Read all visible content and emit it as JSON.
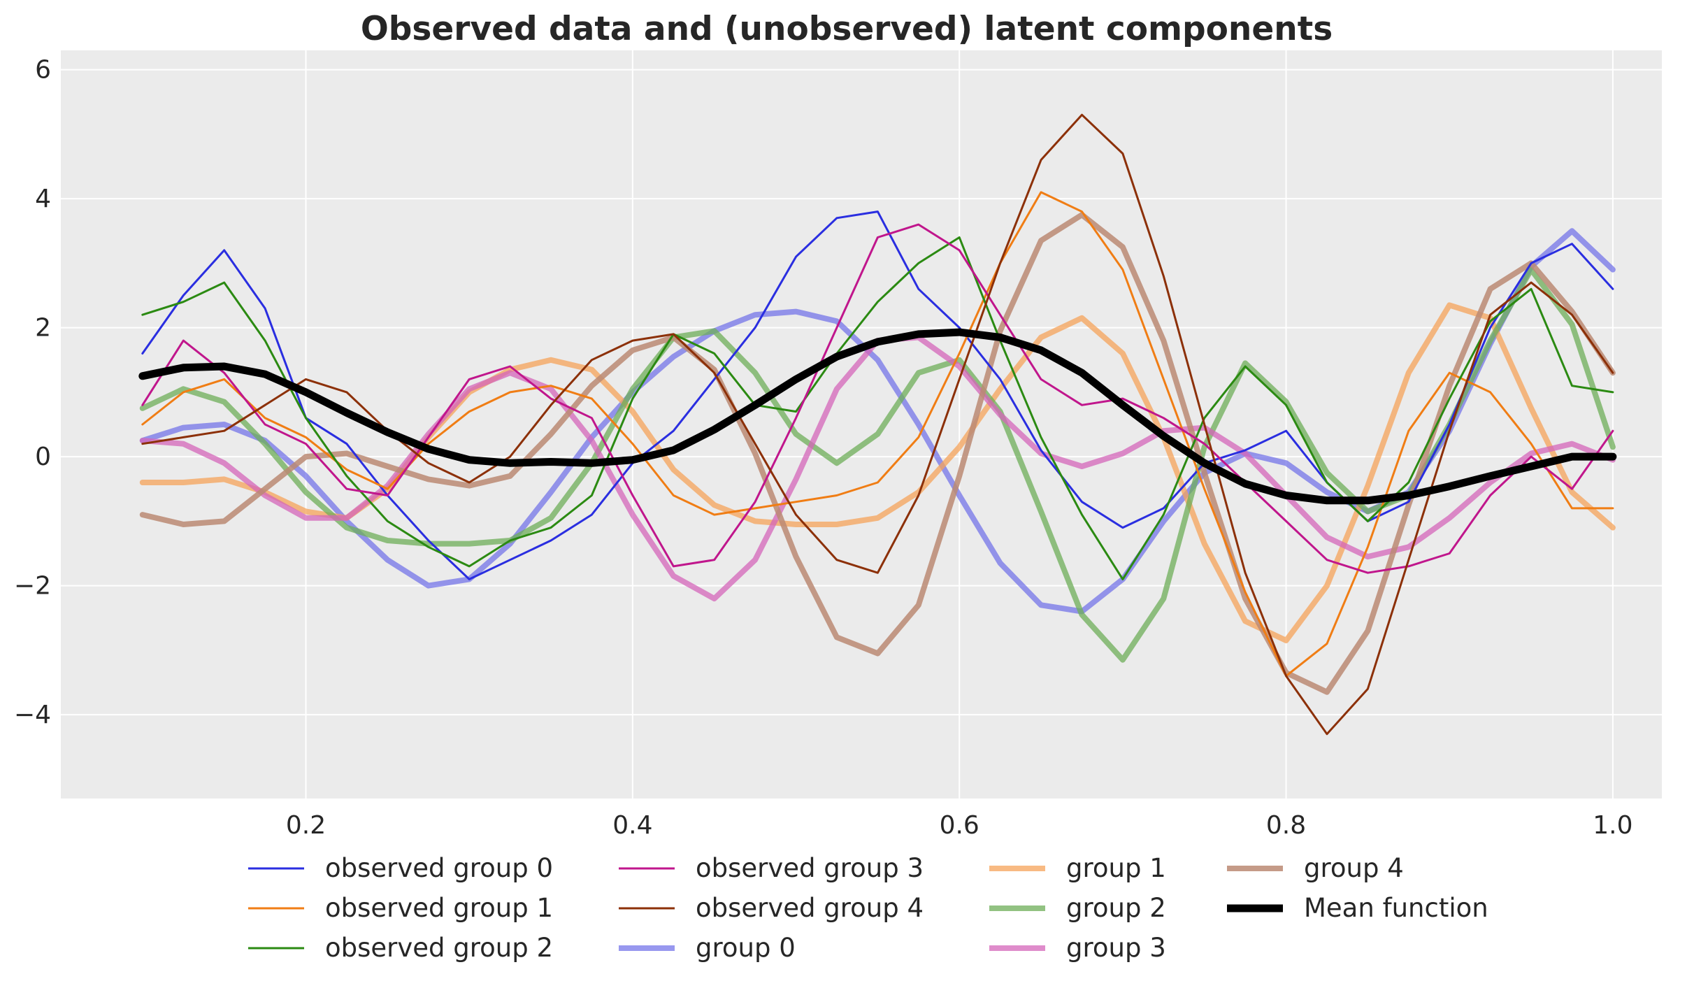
{
  "chart_data": {
    "type": "line",
    "title": "Observed data and (unobserved) latent components",
    "xlabel": "",
    "ylabel": "",
    "xlim": [
      0.05,
      1.03
    ],
    "ylim": [
      -5.3,
      6.3
    ],
    "x_ticks": [
      0.2,
      0.4,
      0.6,
      0.8,
      1.0
    ],
    "x_tick_labels": [
      "0.2",
      "0.4",
      "0.6",
      "0.8",
      "1.0"
    ],
    "y_ticks": [
      -4,
      -2,
      0,
      2,
      4,
      6
    ],
    "y_tick_labels": [
      "−4",
      "−2",
      "0",
      "2",
      "4",
      "6"
    ],
    "grid": true,
    "background": "#ebebeb",
    "legend_placement": "bottom, below plot",
    "x": [
      0.1,
      0.125,
      0.15,
      0.175,
      0.2,
      0.225,
      0.25,
      0.275,
      0.3,
      0.325,
      0.35,
      0.375,
      0.4,
      0.425,
      0.45,
      0.475,
      0.5,
      0.525,
      0.55,
      0.575,
      0.6,
      0.625,
      0.65,
      0.675,
      0.7,
      0.725,
      0.75,
      0.775,
      0.8,
      0.825,
      0.85,
      0.875,
      0.9,
      0.925,
      0.95,
      0.975,
      1.0
    ],
    "series": [
      {
        "name": "observed group 0",
        "color": "#2a2ee0",
        "width": 3,
        "alpha": 1,
        "values": [
          1.6,
          2.5,
          3.2,
          2.3,
          0.6,
          0.2,
          -0.6,
          -1.3,
          -1.9,
          -1.6,
          -1.3,
          -0.9,
          -0.1,
          0.4,
          1.2,
          2.0,
          3.1,
          3.7,
          3.8,
          2.6,
          2.0,
          1.2,
          0.1,
          -0.7,
          -1.1,
          -0.8,
          -0.1,
          0.1,
          0.4,
          -0.4,
          -1.0,
          -0.7,
          0.5,
          2.0,
          3.0,
          3.3,
          2.6
        ]
      },
      {
        "name": "observed group 1",
        "color": "#f07d14",
        "width": 3,
        "alpha": 1,
        "values": [
          0.5,
          1.0,
          1.2,
          0.6,
          0.3,
          -0.2,
          -0.5,
          0.2,
          0.7,
          1.0,
          1.1,
          0.9,
          0.2,
          -0.6,
          -0.9,
          -0.8,
          -0.7,
          -0.6,
          -0.4,
          0.3,
          1.6,
          3.0,
          4.1,
          3.8,
          2.9,
          1.2,
          -0.5,
          -2.1,
          -3.4,
          -2.9,
          -1.4,
          0.4,
          1.3,
          1.0,
          0.2,
          -0.8,
          -0.8
        ]
      },
      {
        "name": "observed group 2",
        "color": "#2b8a12",
        "width": 3,
        "alpha": 1,
        "values": [
          2.2,
          2.4,
          2.7,
          1.8,
          0.6,
          -0.3,
          -1.0,
          -1.4,
          -1.7,
          -1.3,
          -1.1,
          -0.6,
          0.9,
          1.9,
          1.6,
          0.8,
          0.7,
          1.6,
          2.4,
          3.0,
          3.4,
          1.8,
          0.3,
          -0.9,
          -1.9,
          -0.9,
          0.6,
          1.4,
          0.8,
          -0.4,
          -1.0,
          -0.4,
          0.9,
          2.1,
          2.6,
          1.1,
          1.0
        ]
      },
      {
        "name": "observed group 3",
        "color": "#c0168c",
        "width": 3,
        "alpha": 1,
        "values": [
          0.8,
          1.8,
          1.3,
          0.5,
          0.2,
          -0.5,
          -0.6,
          0.3,
          1.2,
          1.4,
          0.9,
          0.6,
          -0.6,
          -1.7,
          -1.6,
          -0.7,
          0.6,
          2.0,
          3.4,
          3.6,
          3.2,
          2.2,
          1.2,
          0.8,
          0.9,
          0.6,
          0.2,
          -0.4,
          -1.0,
          -1.6,
          -1.8,
          -1.7,
          -1.5,
          -0.6,
          0.0,
          -0.5,
          0.4
        ]
      },
      {
        "name": "observed group 4",
        "color": "#8c3008",
        "width": 3,
        "alpha": 1,
        "values": [
          0.2,
          0.3,
          0.4,
          0.8,
          1.2,
          1.0,
          0.4,
          -0.1,
          -0.4,
          0.0,
          0.8,
          1.5,
          1.8,
          1.9,
          1.3,
          0.2,
          -0.9,
          -1.6,
          -1.8,
          -0.6,
          1.2,
          3.0,
          4.6,
          5.3,
          4.7,
          2.8,
          0.5,
          -1.8,
          -3.4,
          -4.3,
          -3.6,
          -1.6,
          0.4,
          2.2,
          2.7,
          2.2,
          1.3
        ]
      },
      {
        "name": "group 0",
        "color": "#6c6ce8",
        "width": 8,
        "alpha": 0.7,
        "values": [
          0.25,
          0.45,
          0.5,
          0.25,
          -0.3,
          -1.0,
          -1.6,
          -2.0,
          -1.9,
          -1.35,
          -0.55,
          0.3,
          1.0,
          1.55,
          1.95,
          2.2,
          2.25,
          2.1,
          1.5,
          0.5,
          -0.6,
          -1.65,
          -2.3,
          -2.4,
          -1.9,
          -1.0,
          -0.25,
          0.05,
          -0.1,
          -0.55,
          -0.85,
          -0.55,
          0.4,
          1.75,
          2.95,
          3.5,
          2.9
        ]
      },
      {
        "name": "group 1",
        "color": "#f5a35a",
        "width": 8,
        "alpha": 0.75,
        "values": [
          -0.4,
          -0.4,
          -0.35,
          -0.55,
          -0.85,
          -0.95,
          -0.5,
          0.3,
          1.0,
          1.35,
          1.5,
          1.35,
          0.7,
          -0.2,
          -0.75,
          -1.0,
          -1.05,
          -1.05,
          -0.95,
          -0.55,
          0.15,
          1.05,
          1.85,
          2.15,
          1.6,
          0.3,
          -1.35,
          -2.55,
          -2.85,
          -2.0,
          -0.45,
          1.3,
          2.35,
          2.15,
          0.75,
          -0.55,
          -1.1
        ]
      },
      {
        "name": "group 2",
        "color": "#6eae58",
        "width": 8,
        "alpha": 0.75,
        "values": [
          0.75,
          1.05,
          0.85,
          0.2,
          -0.55,
          -1.1,
          -1.3,
          -1.35,
          -1.35,
          -1.3,
          -0.95,
          -0.1,
          1.05,
          1.85,
          1.95,
          1.3,
          0.35,
          -0.1,
          0.35,
          1.3,
          1.5,
          0.7,
          -0.85,
          -2.45,
          -3.15,
          -2.2,
          0.15,
          1.45,
          0.85,
          -0.25,
          -0.85,
          -0.6,
          0.5,
          1.8,
          2.9,
          2.05,
          0.15
        ]
      },
      {
        "name": "group 3",
        "color": "#d466ba",
        "width": 8,
        "alpha": 0.75,
        "values": [
          0.25,
          0.2,
          -0.1,
          -0.6,
          -0.95,
          -0.95,
          -0.45,
          0.35,
          1.05,
          1.3,
          1.05,
          0.25,
          -0.9,
          -1.85,
          -2.2,
          -1.6,
          -0.35,
          1.05,
          1.8,
          1.85,
          1.4,
          0.65,
          0.05,
          -0.15,
          0.05,
          0.4,
          0.45,
          0.05,
          -0.6,
          -1.25,
          -1.55,
          -1.4,
          -0.95,
          -0.4,
          0.05,
          0.2,
          -0.05
        ]
      },
      {
        "name": "group 4",
        "color": "#bb8a73",
        "width": 8,
        "alpha": 0.85,
        "values": [
          -0.9,
          -1.05,
          -1.0,
          -0.5,
          0.0,
          0.05,
          -0.15,
          -0.35,
          -0.45,
          -0.3,
          0.35,
          1.1,
          1.65,
          1.85,
          1.35,
          0.05,
          -1.55,
          -2.8,
          -3.05,
          -2.3,
          -0.3,
          1.95,
          3.35,
          3.75,
          3.25,
          1.8,
          -0.25,
          -2.2,
          -3.35,
          -3.65,
          -2.7,
          -0.75,
          1.1,
          2.6,
          3.0,
          2.25,
          1.3
        ]
      },
      {
        "name": "Mean function",
        "color": "#000000",
        "width": 11,
        "alpha": 1,
        "values": [
          1.25,
          1.38,
          1.4,
          1.28,
          1.0,
          0.68,
          0.38,
          0.12,
          -0.05,
          -0.1,
          -0.08,
          -0.1,
          -0.05,
          0.1,
          0.42,
          0.8,
          1.2,
          1.55,
          1.78,
          1.9,
          1.93,
          1.85,
          1.65,
          1.3,
          0.8,
          0.32,
          -0.1,
          -0.42,
          -0.6,
          -0.68,
          -0.68,
          -0.6,
          -0.46,
          -0.3,
          -0.15,
          0.0,
          0.0
        ]
      }
    ]
  }
}
